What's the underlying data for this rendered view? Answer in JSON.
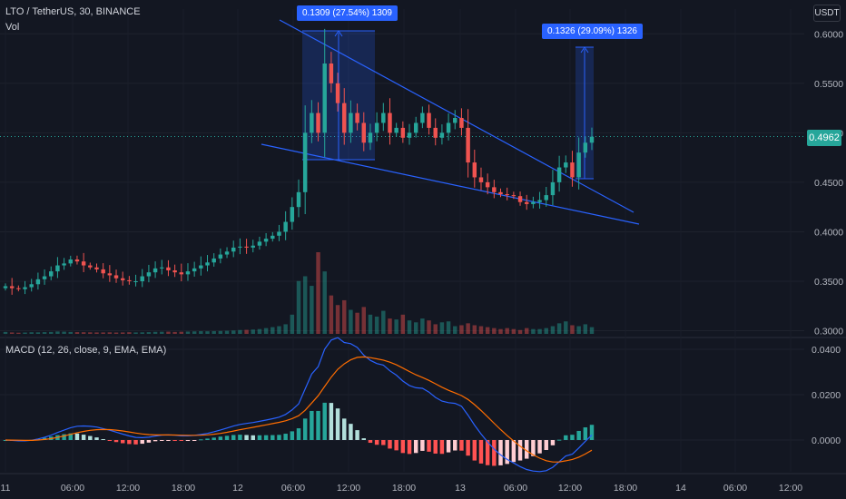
{
  "header": {
    "symbol_title": "LTO / TetherUS, 30, BINANCE",
    "volume_label": "Vol",
    "macd_label": "MACD (12, 26, close, 9, EMA, EMA)",
    "currency_button": "USDT"
  },
  "current_price": "0.4962",
  "measure_labels": [
    "0.1309 (27.54%) 1309",
    "0.1326 (29.09%) 1326"
  ],
  "colors": {
    "background": "#131722",
    "up": "#26a69a",
    "down": "#ef5350",
    "trendline": "#2962ff",
    "macd_line": "#2962ff",
    "signal_line": "#ff6d00",
    "measure_fill": "#2962ff"
  },
  "chart_data": [
    {
      "type": "candlestick",
      "title": "LTO / TetherUS, 30, BINANCE",
      "y_ticks": [
        "0.6000",
        "0.5500",
        "0.5000",
        "0.4500",
        "0.4000",
        "0.3500",
        "0.3000"
      ],
      "x_ticks": [
        "11",
        "06:00",
        "12:00",
        "18:00",
        "12",
        "06:00",
        "12:00",
        "18:00",
        "13",
        "06:00",
        "12:00",
        "18:00",
        "14",
        "06:00",
        "12:00"
      ],
      "ylim": [
        0.295,
        0.625
      ],
      "close_series": [
        0.345,
        0.343,
        0.342,
        0.344,
        0.347,
        0.352,
        0.355,
        0.36,
        0.366,
        0.368,
        0.372,
        0.37,
        0.366,
        0.364,
        0.362,
        0.358,
        0.356,
        0.353,
        0.351,
        0.35,
        0.35,
        0.355,
        0.359,
        0.363,
        0.364,
        0.361,
        0.359,
        0.357,
        0.36,
        0.363,
        0.366,
        0.369,
        0.373,
        0.377,
        0.38,
        0.384,
        0.385,
        0.384,
        0.386,
        0.39,
        0.393,
        0.396,
        0.4,
        0.41,
        0.425,
        0.44,
        0.5,
        0.52,
        0.5,
        0.57,
        0.55,
        0.53,
        0.5,
        0.52,
        0.51,
        0.49,
        0.5,
        0.51,
        0.52,
        0.5,
        0.505,
        0.495,
        0.5,
        0.51,
        0.52,
        0.505,
        0.495,
        0.5,
        0.51,
        0.515,
        0.505,
        0.47,
        0.455,
        0.45,
        0.445,
        0.44,
        0.438,
        0.437,
        0.436,
        0.43,
        0.428,
        0.43,
        0.432,
        0.437,
        0.45,
        0.465,
        0.47,
        0.455,
        0.48,
        0.49,
        0.496
      ],
      "markers": [
        {
          "bar_index": 9,
          "text": "06:00"
        }
      ],
      "volume": [
        2,
        1.5,
        1.2,
        1.4,
        1.7,
        1.6,
        1.8,
        2,
        2.5,
        2.3,
        2,
        1.8,
        1.7,
        1.6,
        1.5,
        1.5,
        1.6,
        1.4,
        1.5,
        1.7,
        1.5,
        1.6,
        1.8,
        2.1,
        2.2,
        2.3,
        2,
        2.2,
        2.4,
        2.6,
        2.8,
        2.7,
        2.9,
        3,
        3.2,
        3.5,
        4,
        4.2,
        4.5,
        5,
        6,
        7,
        8,
        10,
        20,
        55,
        60,
        50,
        85,
        65,
        40,
        30,
        35,
        25,
        22,
        28,
        20,
        18,
        24,
        16,
        15,
        20,
        14,
        12,
        16,
        14,
        10,
        12,
        13,
        8,
        9,
        11,
        9,
        8,
        7,
        6,
        5,
        6,
        5,
        4,
        6,
        5,
        5,
        6,
        8,
        11,
        13,
        9,
        8,
        10,
        7
      ]
    },
    {
      "type": "macd",
      "title": "MACD (12, 26, close, 9, EMA, EMA)",
      "y_ticks": [
        "0.0400",
        "0.0200",
        "0.0000"
      ],
      "ylim": [
        -0.014,
        0.044
      ]
    }
  ]
}
